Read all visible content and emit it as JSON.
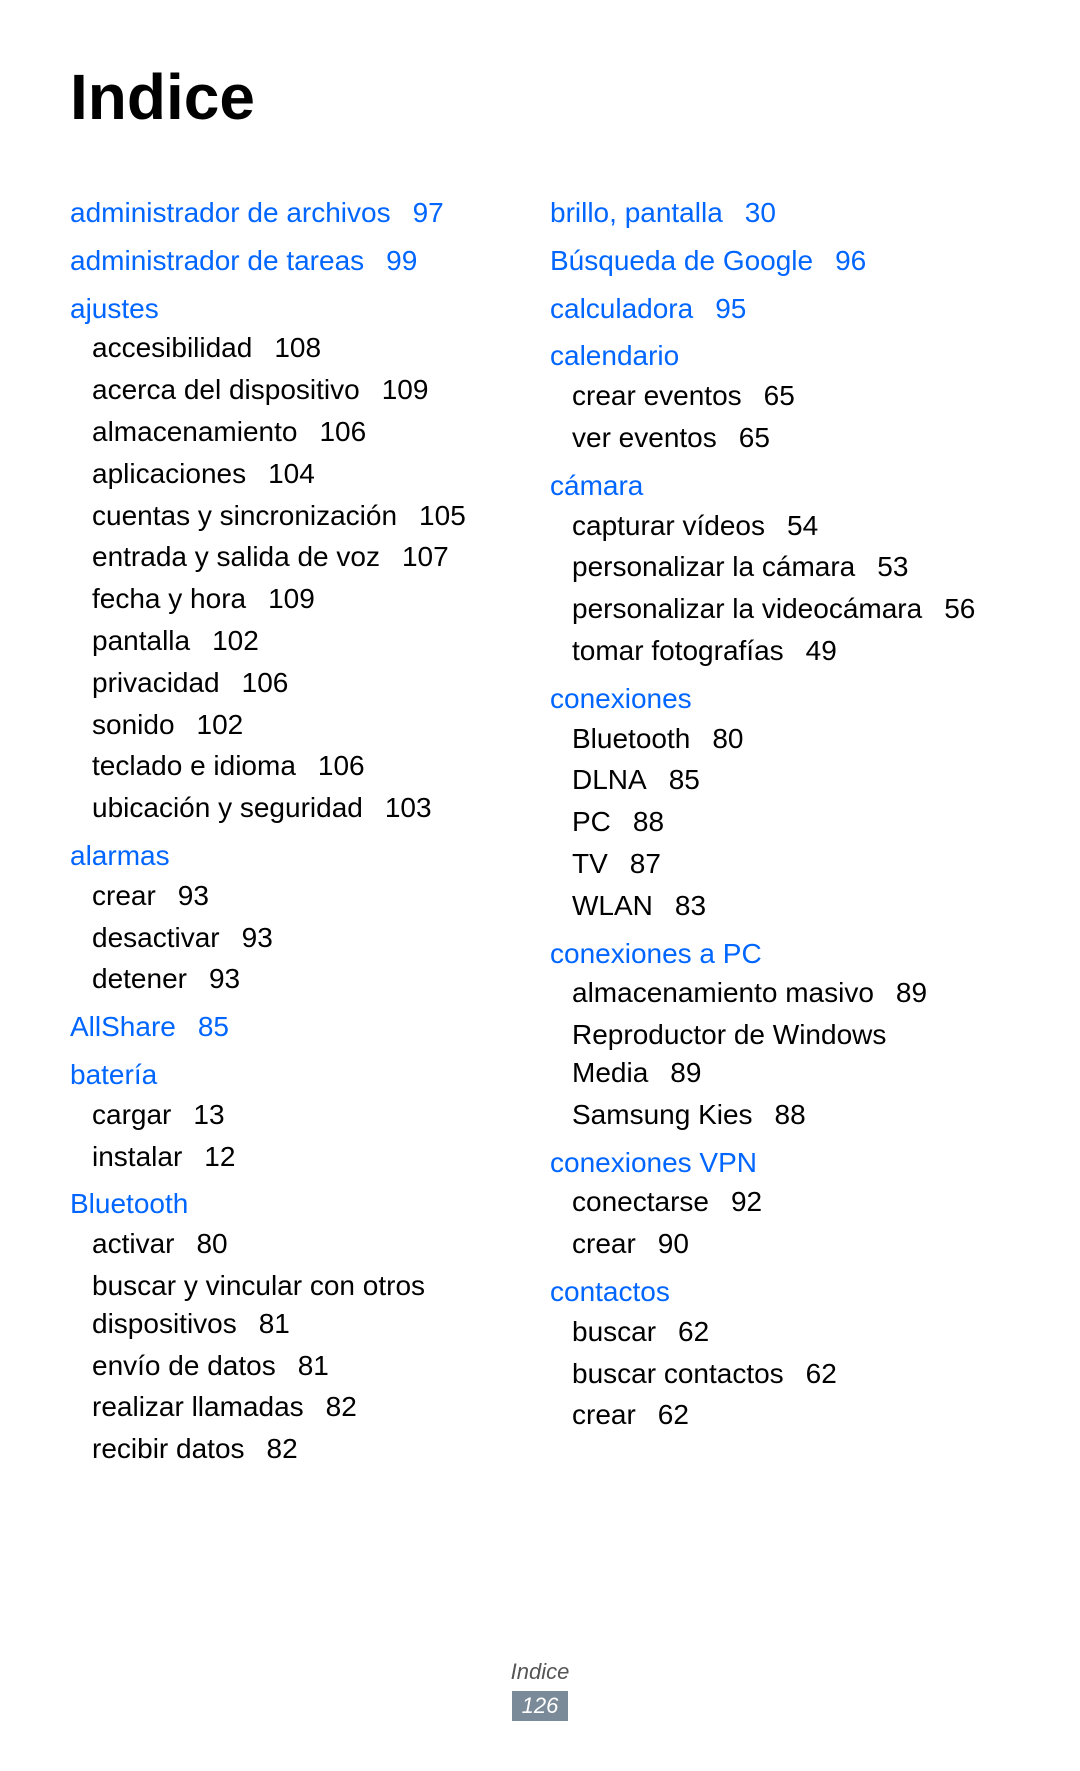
{
  "title": "Indice",
  "footer": {
    "label": "Indice",
    "page": "126"
  },
  "colors": {
    "heading": "#0066ff",
    "text": "#000000",
    "background": "#ffffff",
    "footer_bg": "#7a8a99",
    "footer_fg": "#ffffff"
  },
  "typography": {
    "title_size": 64,
    "entry_size": 28,
    "footer_size": 22
  },
  "columns": [
    [
      {
        "type": "heading",
        "label": "administrador de archivos",
        "page": "97"
      },
      {
        "type": "heading",
        "label": "administrador de tareas",
        "page": "99"
      },
      {
        "type": "heading",
        "label": "ajustes"
      },
      {
        "type": "sub",
        "label": "accesibilidad",
        "page": "108"
      },
      {
        "type": "sub",
        "label": "acerca del dispositivo",
        "page": "109"
      },
      {
        "type": "sub",
        "label": "almacenamiento",
        "page": "106"
      },
      {
        "type": "sub",
        "label": "aplicaciones",
        "page": "104"
      },
      {
        "type": "sub",
        "label": "cuentas y sincronización",
        "page": "105"
      },
      {
        "type": "sub",
        "label": "entrada y salida de voz",
        "page": "107"
      },
      {
        "type": "sub",
        "label": "fecha y hora",
        "page": "109"
      },
      {
        "type": "sub",
        "label": "pantalla",
        "page": "102"
      },
      {
        "type": "sub",
        "label": "privacidad",
        "page": "106"
      },
      {
        "type": "sub",
        "label": "sonido",
        "page": "102"
      },
      {
        "type": "sub",
        "label": "teclado e idioma",
        "page": "106"
      },
      {
        "type": "sub",
        "label": "ubicación y seguridad",
        "page": "103"
      },
      {
        "type": "heading",
        "label": "alarmas"
      },
      {
        "type": "sub",
        "label": "crear",
        "page": "93"
      },
      {
        "type": "sub",
        "label": "desactivar",
        "page": "93"
      },
      {
        "type": "sub",
        "label": "detener",
        "page": "93"
      },
      {
        "type": "heading",
        "label": "AllShare",
        "page": "85"
      },
      {
        "type": "heading",
        "label": "batería"
      },
      {
        "type": "sub",
        "label": "cargar",
        "page": "13"
      },
      {
        "type": "sub",
        "label": "instalar",
        "page": "12"
      },
      {
        "type": "heading",
        "label": "Bluetooth"
      },
      {
        "type": "sub",
        "label": "activar",
        "page": "80"
      },
      {
        "type": "sub",
        "label": "buscar y vincular con otros dispositivos",
        "page": "81"
      },
      {
        "type": "sub",
        "label": "envío de datos",
        "page": "81"
      },
      {
        "type": "sub",
        "label": "realizar llamadas",
        "page": "82"
      },
      {
        "type": "sub",
        "label": "recibir datos",
        "page": "82"
      }
    ],
    [
      {
        "type": "heading",
        "label": "brillo, pantalla",
        "page": "30"
      },
      {
        "type": "heading",
        "label": "Búsqueda de Google",
        "page": "96"
      },
      {
        "type": "heading",
        "label": "calculadora",
        "page": "95"
      },
      {
        "type": "heading",
        "label": "calendario"
      },
      {
        "type": "sub",
        "label": "crear eventos",
        "page": "65"
      },
      {
        "type": "sub",
        "label": "ver eventos",
        "page": "65"
      },
      {
        "type": "heading",
        "label": "cámara"
      },
      {
        "type": "sub",
        "label": "capturar vídeos",
        "page": "54"
      },
      {
        "type": "sub",
        "label": "personalizar la cámara",
        "page": "53"
      },
      {
        "type": "sub",
        "label": "personalizar la videocámara",
        "page": "56"
      },
      {
        "type": "sub",
        "label": "tomar fotografías",
        "page": "49"
      },
      {
        "type": "heading",
        "label": "conexiones"
      },
      {
        "type": "sub",
        "label": "Bluetooth",
        "page": "80"
      },
      {
        "type": "sub",
        "label": "DLNA",
        "page": "85"
      },
      {
        "type": "sub",
        "label": "PC",
        "page": "88"
      },
      {
        "type": "sub",
        "label": "TV",
        "page": "87"
      },
      {
        "type": "sub",
        "label": "WLAN",
        "page": "83"
      },
      {
        "type": "heading",
        "label": "conexiones a PC"
      },
      {
        "type": "sub",
        "label": "almacenamiento masivo",
        "page": "89"
      },
      {
        "type": "sub",
        "label": "Reproductor de Windows Media",
        "page": "89"
      },
      {
        "type": "sub",
        "label": "Samsung Kies",
        "page": "88"
      },
      {
        "type": "heading",
        "label": "conexiones VPN"
      },
      {
        "type": "sub",
        "label": "conectarse",
        "page": "92"
      },
      {
        "type": "sub",
        "label": "crear",
        "page": "90"
      },
      {
        "type": "heading",
        "label": "contactos"
      },
      {
        "type": "sub",
        "label": "buscar",
        "page": "62"
      },
      {
        "type": "sub",
        "label": "buscar contactos",
        "page": "62"
      },
      {
        "type": "sub",
        "label": "crear",
        "page": "62"
      }
    ]
  ]
}
